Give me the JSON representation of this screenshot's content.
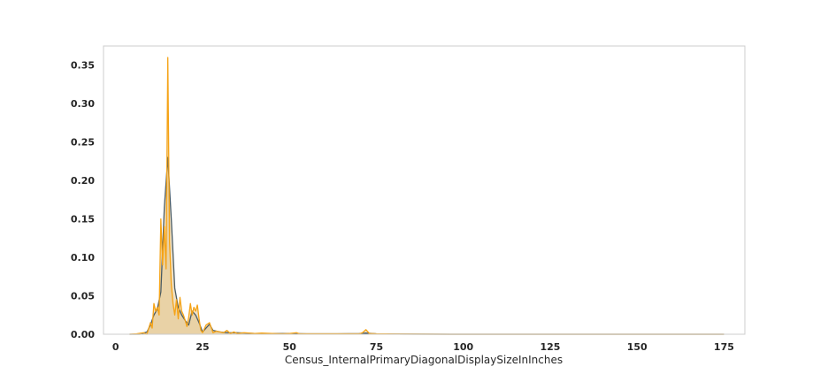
{
  "chart_data": {
    "type": "area",
    "title": "",
    "xlabel": "Census_InternalPrimaryDiagonalDisplaySizeInInches",
    "ylabel": "",
    "xlim": [
      -3.5,
      181
    ],
    "ylim": [
      0,
      0.375
    ],
    "xticks": [
      0,
      25,
      50,
      75,
      100,
      125,
      150,
      175
    ],
    "yticks": [
      0.0,
      0.05,
      0.1,
      0.15,
      0.2,
      0.25,
      0.3,
      0.35
    ],
    "xtick_labels": [
      "0",
      "25",
      "50",
      "75",
      "100",
      "125",
      "150",
      "175"
    ],
    "ytick_labels": [
      "0.00",
      "0.05",
      "0.10",
      "0.15",
      "0.20",
      "0.25",
      "0.30",
      "0.35"
    ],
    "grid": false,
    "legend": "none",
    "colors": {
      "series_a_line": "#4a5b63",
      "series_b_line": "#f5a316",
      "fill": "#e3c68f",
      "frame": "#cccccc"
    },
    "series": [
      {
        "style": "smooth-kde",
        "x": [
          4,
          7,
          9,
          10,
          11,
          12,
          13,
          14,
          15,
          16,
          17,
          18,
          19,
          20,
          21,
          22,
          23,
          24,
          25,
          26,
          27,
          28,
          30,
          32,
          35,
          40,
          45,
          50,
          55,
          60,
          70,
          72,
          75,
          80,
          100,
          125,
          150,
          175
        ],
        "y": [
          0.0,
          0.0,
          0.003,
          0.012,
          0.025,
          0.033,
          0.055,
          0.165,
          0.23,
          0.15,
          0.06,
          0.035,
          0.025,
          0.018,
          0.012,
          0.03,
          0.025,
          0.015,
          0.003,
          0.008,
          0.013,
          0.005,
          0.003,
          0.002,
          0.002,
          0.001,
          0.001,
          0.001,
          0.0005,
          0.0005,
          0.0008,
          0.0015,
          0.0005,
          0.0002,
          0.0,
          0.0,
          0.0,
          0.0
        ]
      },
      {
        "style": "jagged-kde",
        "x": [
          4,
          6,
          8,
          9,
          10,
          10.5,
          11,
          11.5,
          12,
          12.5,
          13,
          13.5,
          14,
          14.5,
          15,
          15.5,
          16,
          16.5,
          17,
          17.5,
          18,
          18.5,
          19,
          19.5,
          20,
          20.5,
          21,
          21.5,
          22,
          22.5,
          23,
          23.5,
          24,
          24.5,
          25,
          26,
          27,
          28,
          29,
          30,
          31,
          32,
          33,
          34,
          35,
          37,
          40,
          42,
          45,
          48,
          50,
          52,
          53,
          55,
          60,
          65,
          70,
          71,
          72,
          73,
          75,
          80,
          100,
          125,
          150,
          175
        ],
        "y": [
          0.0,
          0.0005,
          0.002,
          0.0,
          0.015,
          0.008,
          0.04,
          0.03,
          0.035,
          0.025,
          0.15,
          0.09,
          0.14,
          0.085,
          0.36,
          0.12,
          0.065,
          0.04,
          0.025,
          0.045,
          0.02,
          0.048,
          0.03,
          0.025,
          0.018,
          0.01,
          0.022,
          0.04,
          0.025,
          0.035,
          0.03,
          0.038,
          0.02,
          0.005,
          0.002,
          0.012,
          0.015,
          0.002,
          0.004,
          0.003,
          0.002,
          0.005,
          0.001,
          0.003,
          0.001,
          0.002,
          0.001,
          0.0015,
          0.001,
          0.0005,
          0.001,
          0.002,
          0.0005,
          0.0005,
          0.0005,
          0.0005,
          0.0005,
          0.002,
          0.006,
          0.001,
          0.0005,
          0.0002,
          0.0,
          0.0,
          0.0,
          0.0
        ]
      }
    ]
  }
}
